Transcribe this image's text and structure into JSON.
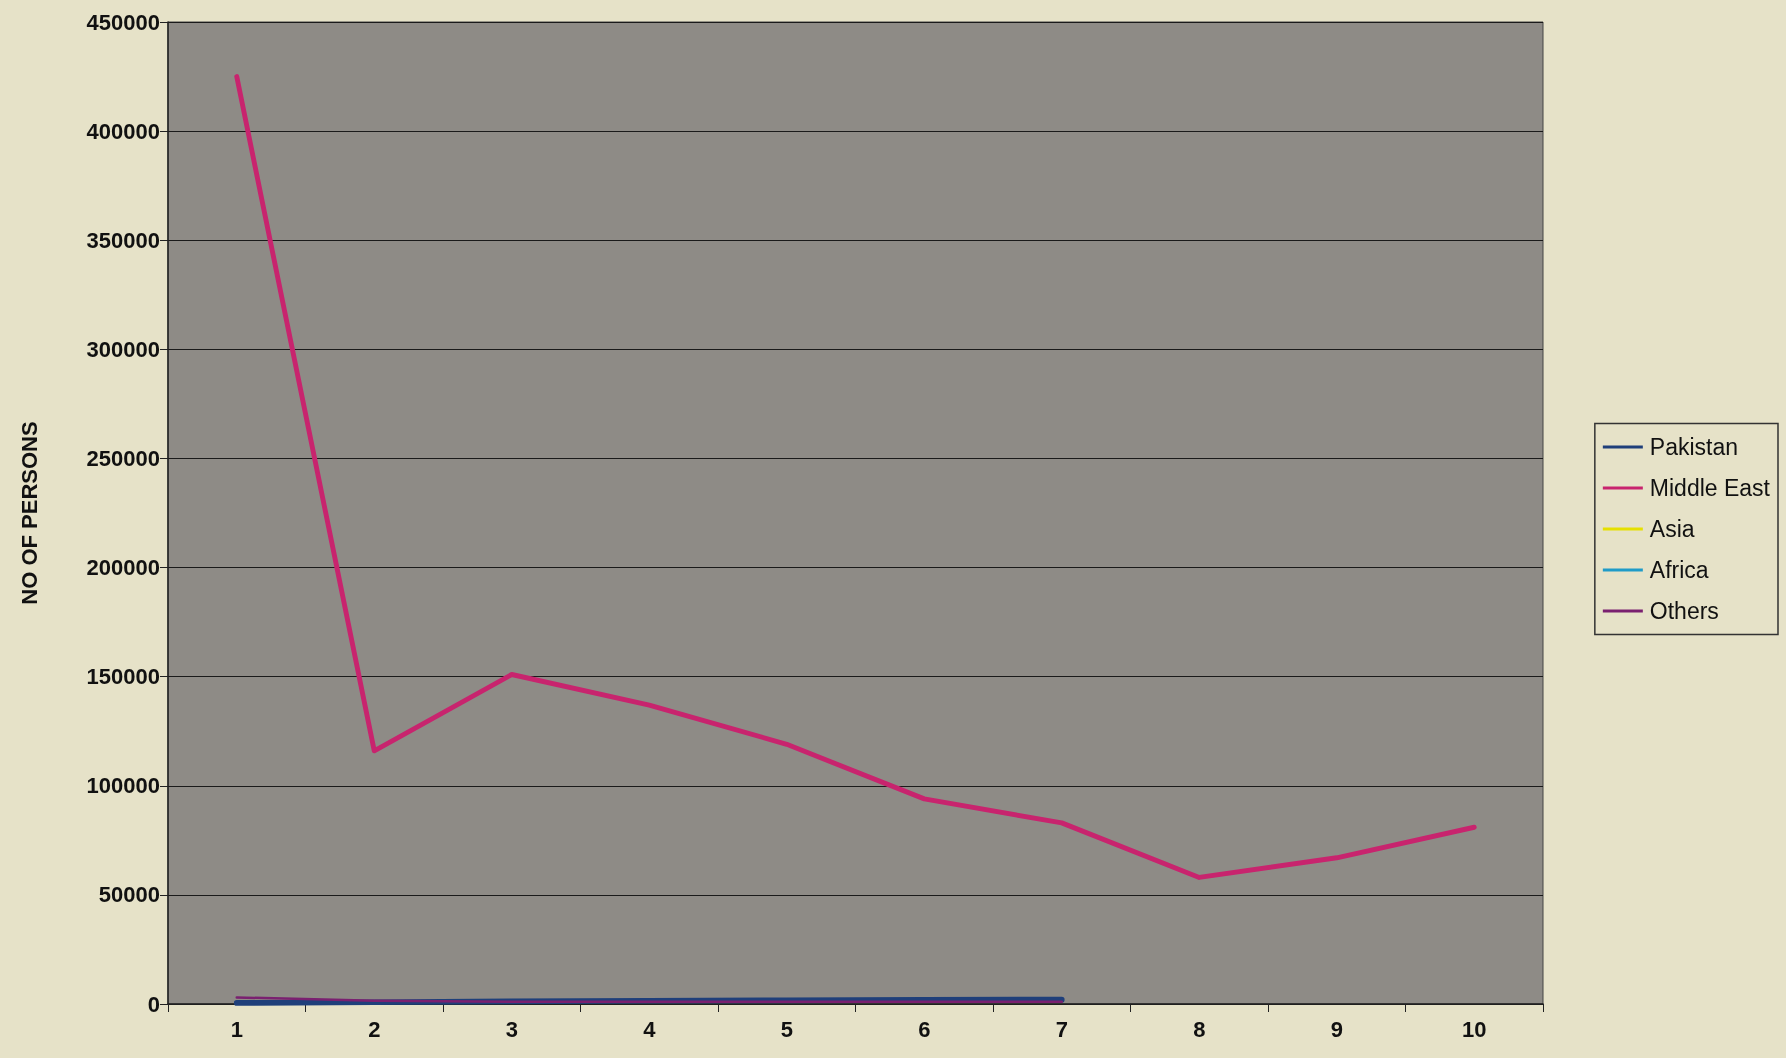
{
  "chart_data": {
    "type": "line",
    "ylabel": "NO OF PERSONS",
    "categories": [
      "1",
      "2",
      "3",
      "4",
      "5",
      "6",
      "7",
      "8",
      "9",
      "10"
    ],
    "series": [
      {
        "name": "Pakistan",
        "color": "#1f3f7a",
        "values": [
          500,
          800,
          1200,
          1500,
          1700,
          1900,
          2000,
          null,
          null,
          null
        ]
      },
      {
        "name": "Middle East",
        "color": "#c8246e",
        "values": [
          425000,
          116000,
          151000,
          137000,
          119000,
          94000,
          83000,
          58000,
          67000,
          81000
        ]
      },
      {
        "name": "Asia",
        "color": "#e6e000",
        "values": [
          null,
          null,
          null,
          null,
          null,
          null,
          null,
          null,
          null,
          null
        ]
      },
      {
        "name": "Africa",
        "color": "#1f9bc8",
        "values": [
          null,
          null,
          null,
          null,
          null,
          null,
          null,
          null,
          null,
          null
        ]
      },
      {
        "name": "Others",
        "color": "#7a2070",
        "values": [
          3000,
          1500,
          1000,
          1000,
          1000,
          1000,
          1000,
          null,
          null,
          null
        ]
      }
    ],
    "ylim": [
      0,
      450000
    ],
    "yticks": [
      0,
      50000,
      100000,
      150000,
      200000,
      250000,
      300000,
      350000,
      400000,
      450000
    ],
    "grid": "y",
    "legend": "right",
    "marker": "none",
    "line_style": "solid"
  }
}
